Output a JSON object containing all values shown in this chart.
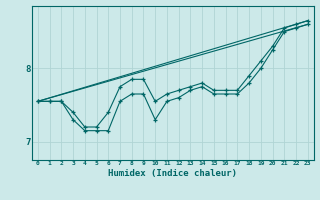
{
  "xlabel": "Humidex (Indice chaleur)",
  "ylabel": "",
  "xlim": [
    -0.5,
    23.5
  ],
  "ylim": [
    6.75,
    8.85
  ],
  "yticks": [
    7,
    8
  ],
  "xticks": [
    0,
    1,
    2,
    3,
    4,
    5,
    6,
    7,
    8,
    9,
    10,
    11,
    12,
    13,
    14,
    15,
    16,
    17,
    18,
    19,
    20,
    21,
    22,
    23
  ],
  "bg_color": "#cce9e9",
  "line_color": "#006666",
  "grid_color": "#b0d4d4",
  "line1_x": [
    0,
    1,
    2,
    3,
    4,
    5,
    6,
    7,
    8,
    9,
    10,
    11,
    12,
    13,
    14,
    15,
    16,
    17,
    18,
    19,
    20,
    21,
    22,
    23
  ],
  "line1_y": [
    7.55,
    7.55,
    7.55,
    7.4,
    7.2,
    7.2,
    7.4,
    7.75,
    7.85,
    7.85,
    7.55,
    7.65,
    7.7,
    7.75,
    7.8,
    7.7,
    7.7,
    7.7,
    7.9,
    8.1,
    8.3,
    8.55,
    8.6,
    8.65
  ],
  "line2_x": [
    0,
    1,
    2,
    3,
    4,
    5,
    6,
    7,
    8,
    9,
    10,
    11,
    12,
    13,
    14,
    15,
    16,
    17,
    18,
    19,
    20,
    21,
    22,
    23
  ],
  "line2_y": [
    7.55,
    7.55,
    7.55,
    7.3,
    7.15,
    7.15,
    7.15,
    7.55,
    7.65,
    7.65,
    7.3,
    7.55,
    7.6,
    7.7,
    7.75,
    7.65,
    7.65,
    7.65,
    7.8,
    8.0,
    8.25,
    8.5,
    8.55,
    8.6
  ],
  "line3_x": [
    0,
    23
  ],
  "line3_y": [
    7.55,
    8.65
  ],
  "line4_x": [
    0,
    23
  ],
  "line4_y": [
    7.55,
    8.6
  ]
}
